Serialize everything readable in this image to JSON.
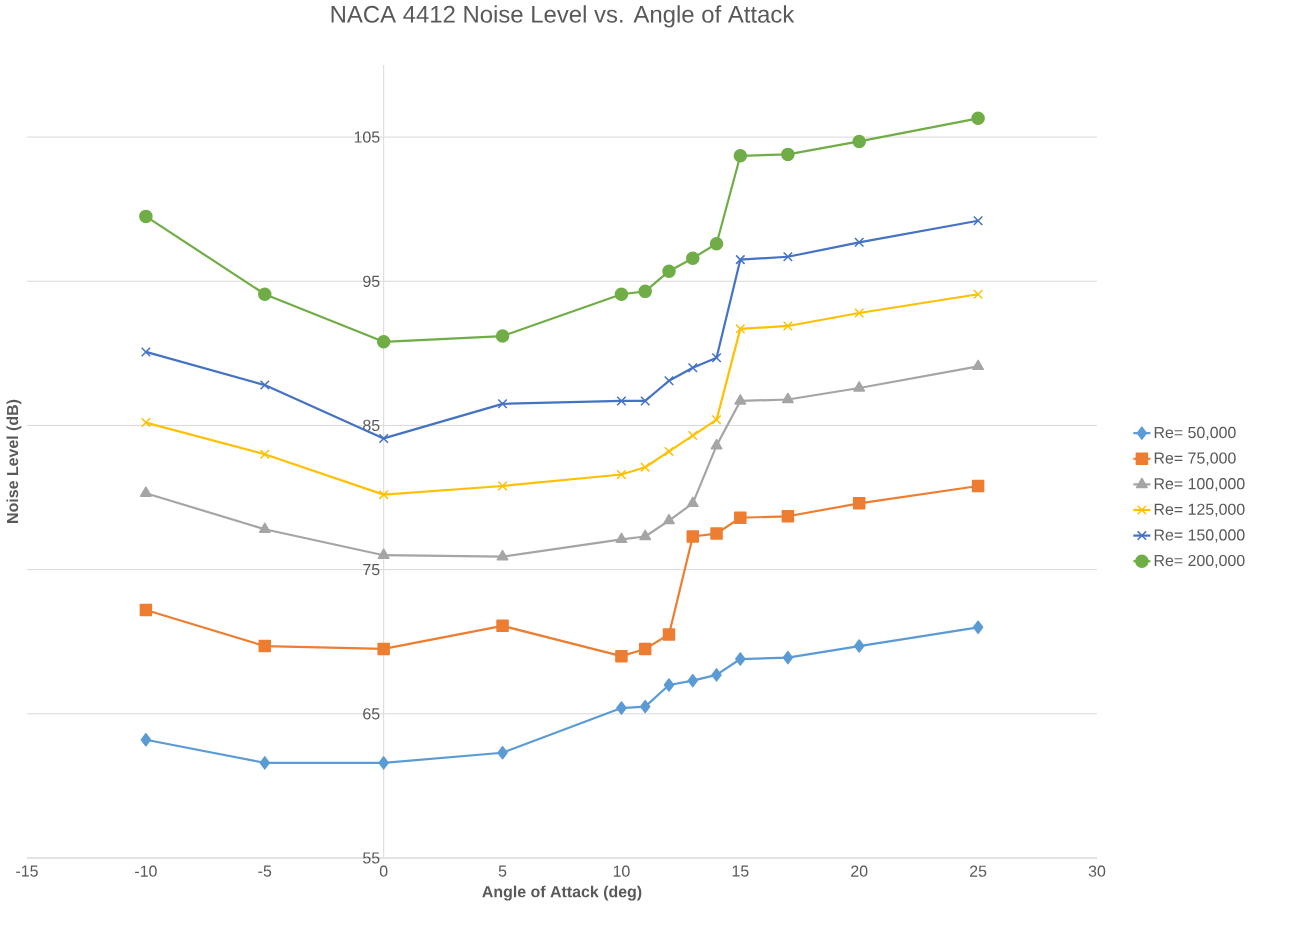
{
  "chart_data": {
    "type": "line",
    "title": "NACA 4412 Noise Level vs. Angle of Attack",
    "xlabel": "Angle of Attack (deg)",
    "ylabel": "Noise Level (dB)",
    "x": [
      -10,
      -5,
      0,
      5,
      10,
      11,
      12,
      13,
      14,
      15,
      17,
      20,
      25
    ],
    "series": [
      {
        "name": "Re= 50,000",
        "color": "#5b9bd5",
        "marker": "diamond",
        "values": [
          63.2,
          61.6,
          61.6,
          62.3,
          65.4,
          65.5,
          67.0,
          67.3,
          67.7,
          68.8,
          68.9,
          69.7,
          71.0
        ]
      },
      {
        "name": "Re= 75,000",
        "color": "#ed7d31",
        "marker": "square",
        "values": [
          72.2,
          69.7,
          69.5,
          71.1,
          69.0,
          69.5,
          70.5,
          77.3,
          77.5,
          78.6,
          78.7,
          79.6,
          80.8
        ]
      },
      {
        "name": "Re= 100,000",
        "color": "#a5a5a5",
        "marker": "triangle",
        "values": [
          80.3,
          77.8,
          76.0,
          75.9,
          77.1,
          77.3,
          78.4,
          79.6,
          83.6,
          86.7,
          86.8,
          87.6,
          89.1
        ]
      },
      {
        "name": "Re= 125,000",
        "color": "#ffc000",
        "marker": "cross",
        "values": [
          85.2,
          83.0,
          80.2,
          80.8,
          81.6,
          82.1,
          83.2,
          84.3,
          85.4,
          91.7,
          91.9,
          92.8,
          94.1
        ]
      },
      {
        "name": "Re= 150,000",
        "color": "#4472c4",
        "marker": "cross",
        "values": [
          90.1,
          87.8,
          84.1,
          86.5,
          86.7,
          86.7,
          88.1,
          89.0,
          89.7,
          96.5,
          96.7,
          97.7,
          99.2
        ]
      },
      {
        "name": "Re= 200,000",
        "color": "#70ad47",
        "marker": "circle",
        "values": [
          99.5,
          94.1,
          90.8,
          91.2,
          94.1,
          94.3,
          95.7,
          96.6,
          97.6,
          103.7,
          103.8,
          104.7,
          106.3
        ]
      }
    ],
    "xlim": [
      -15,
      30
    ],
    "xticks": [
      -15,
      -10,
      -5,
      0,
      5,
      10,
      15,
      20,
      25,
      30
    ],
    "ylim": [
      55,
      110
    ],
    "yticks": [
      55,
      65,
      75,
      85,
      95,
      105
    ],
    "grid": "y",
    "legend": "right",
    "line_style": "solid"
  }
}
